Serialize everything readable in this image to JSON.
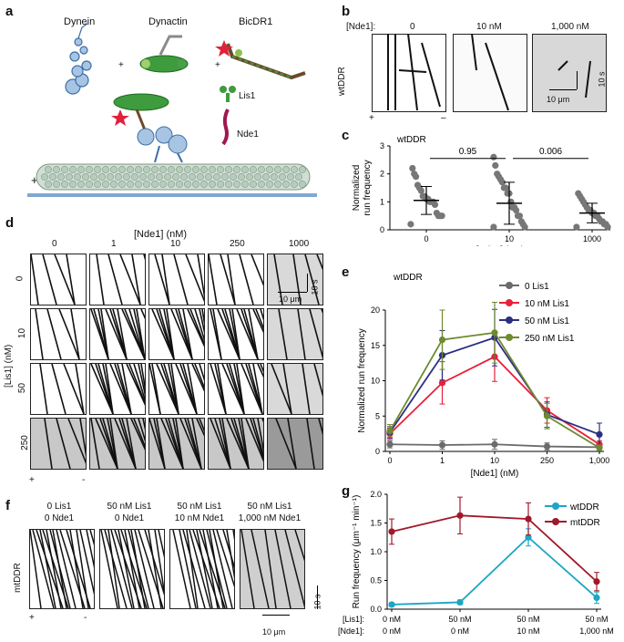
{
  "panels": {
    "a": "a",
    "b": "b",
    "c": "c",
    "d": "d",
    "e": "e",
    "f": "f",
    "g": "g"
  },
  "a": {
    "dynein": "Dynein",
    "dynactin": "Dynactin",
    "bicdr1": "BicDR1",
    "lis1": "Lis1",
    "nde1": "Nde1",
    "plus": "+",
    "minus": "-",
    "op": "+"
  },
  "b": {
    "nde1_label": "[Nde1]:",
    "conds": [
      "0",
      "10 nM",
      "1,000 nM"
    ],
    "row": "wtDDR",
    "scale_t": "10 s",
    "scale_x": "10 μm",
    "plus": "+",
    "minus": "–"
  },
  "c": {
    "title": "wtDDR",
    "ylabel": "Normalized run frequency",
    "xlabel": "[Nde1] (nM)",
    "p1": "0.95",
    "p2": "0.006"
  },
  "d": {
    "title": "[Nde1] (nM)",
    "cols": [
      "0",
      "1",
      "10",
      "250",
      "1000"
    ],
    "rows": [
      "0",
      "10",
      "50",
      "250"
    ],
    "ylabel": "[Lis1] (nM)",
    "scale_t": "10 s",
    "scale_x": "10 μm",
    "plus": "+",
    "minus": "-"
  },
  "e": {
    "title": "wtDDR",
    "ylabel": "Normalized run frequency",
    "xlabel": "[Nde1] (nM)"
  },
  "f": {
    "cond_l1": [
      "0 Lis1",
      "50 nM Lis1",
      "50 nM Lis1",
      "50 nM Lis1"
    ],
    "cond_l2": [
      "0 Nde1",
      "0 Nde1",
      "10 nM Nde1",
      "1,000 nM Nde1"
    ],
    "row": "mtDDR",
    "scale_t": "10 s",
    "scale_x": "10 μm",
    "plus": "+",
    "minus": "-"
  },
  "g": {
    "ylabel": "Run frequency (μm⁻¹ min⁻¹)",
    "lis1_label": "[Lis1]:",
    "nde1_label": "[Nde1]:",
    "lis1": [
      "0 nM",
      "50 nM",
      "50 nM",
      "50 nM"
    ],
    "nde1": [
      "0 nM",
      "0 nM",
      "10 nM",
      "1,000 nM"
    ]
  },
  "chart_data": [
    {
      "type": "scatter",
      "title": "wtDDR",
      "xlabel": "[Nde1] (nM)",
      "ylabel": "Normalized run frequency",
      "categories": [
        "0",
        "10",
        "1000"
      ],
      "ylim": [
        0,
        3
      ],
      "yticks": [
        0,
        1,
        2,
        3
      ],
      "means": [
        1.05,
        0.95,
        0.6
      ],
      "sd": [
        0.5,
        0.75,
        0.35
      ],
      "points": [
        [
          0.2,
          0.5,
          0.5,
          0.5,
          0.6,
          0.9,
          1.0,
          1.0,
          1.0,
          1.1,
          1.1,
          1.2,
          1.2,
          1.4,
          1.5,
          1.6,
          1.9,
          2.0,
          2.2
        ],
        [
          0.1,
          0.1,
          0.2,
          0.3,
          0.5,
          0.5,
          0.7,
          0.8,
          0.8,
          1.0,
          1.3,
          1.3,
          1.5,
          1.5,
          1.7,
          1.8,
          1.9,
          2.0,
          2.3,
          2.6
        ],
        [
          0.1,
          0.1,
          0.2,
          0.2,
          0.3,
          0.3,
          0.4,
          0.5,
          0.5,
          0.6,
          0.6,
          0.7,
          0.7,
          0.8,
          0.9,
          1.0,
          1.1,
          1.2,
          1.3
        ]
      ],
      "comparisons": [
        {
          "pair": [
            0,
            1
          ],
          "p": "0.95"
        },
        {
          "pair": [
            1,
            2
          ],
          "p": "0.006"
        }
      ]
    },
    {
      "type": "line",
      "title": "wtDDR",
      "xlabel": "[Nde1] (nM)",
      "ylabel": "Normalized run frequency",
      "categories": [
        "0",
        "1",
        "10",
        "250",
        "1,000"
      ],
      "ylim": [
        0,
        20
      ],
      "yticks": [
        0,
        5,
        10,
        15,
        20
      ],
      "series": [
        {
          "name": "0 Lis1",
          "color": "#6b6b6b",
          "values": [
            1,
            0.9,
            1.0,
            0.7,
            0.6
          ],
          "err": [
            0.5,
            0.6,
            0.7,
            0.5,
            0.5
          ]
        },
        {
          "name": "10 nM Lis1",
          "color": "#e8203a",
          "values": [
            2.5,
            9.7,
            13.4,
            5.8,
            1.0
          ],
          "err": [
            0.8,
            3.0,
            3.5,
            1.8,
            0.5
          ]
        },
        {
          "name": "50 nM Lis1",
          "color": "#2b2f82",
          "values": [
            2.7,
            13.6,
            16.1,
            5.2,
            2.4
          ],
          "err": [
            0.8,
            3.5,
            4.0,
            1.8,
            1.6
          ]
        },
        {
          "name": "250 nM Lis1",
          "color": "#6e8a2f",
          "values": [
            2.9,
            15.8,
            16.8,
            5.0,
            0.5
          ],
          "err": [
            0.9,
            4.2,
            4.3,
            1.8,
            0.4
          ]
        }
      ]
    },
    {
      "type": "line",
      "xlabel": "",
      "ylabel": "Run frequency (μm⁻¹ min⁻¹)",
      "categories": [
        "0 nM / 0 nM",
        "50 nM / 0 nM",
        "50 nM / 10 nM",
        "50 nM / 1,000 nM"
      ],
      "ylim": [
        0,
        2.0
      ],
      "yticks": [
        0,
        0.5,
        1.0,
        1.5,
        2.0
      ],
      "series": [
        {
          "name": "wtDDR",
          "color": "#1ea5c4",
          "values": [
            0.08,
            0.12,
            1.25,
            0.2
          ],
          "err": [
            0.03,
            0.04,
            0.15,
            0.1
          ]
        },
        {
          "name": "mtDDR",
          "color": "#a0182b",
          "values": [
            1.35,
            1.63,
            1.57,
            0.48
          ],
          "err": [
            0.22,
            0.32,
            0.28,
            0.16
          ]
        }
      ]
    }
  ]
}
